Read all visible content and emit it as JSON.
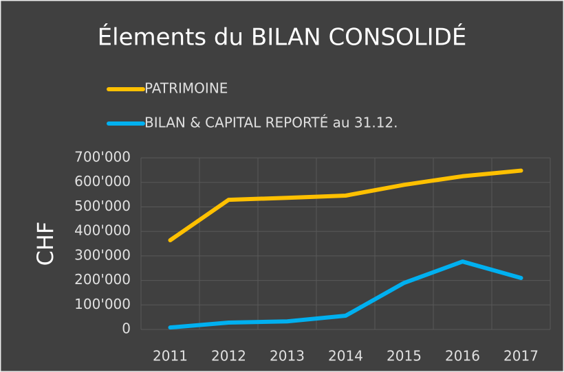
{
  "chart_data": {
    "type": "line",
    "title": "Élements du BILAN CONSOLIDÉ",
    "y_label": "CHF",
    "categories": [
      "2011",
      "2012",
      "2013",
      "2014",
      "2015",
      "2016",
      "2017"
    ],
    "series": [
      {
        "name": "PATRIMOINE",
        "color": "#ffc000",
        "values": [
          364000,
          529000,
          537000,
          546000,
          590000,
          625000,
          648000
        ]
      },
      {
        "name": "BILAN & CAPITAL REPORTÉ au 31.12.",
        "color": "#00b0f0",
        "values": [
          8000,
          28000,
          33000,
          56000,
          190000,
          277000,
          210000
        ]
      }
    ],
    "ylim": [
      0,
      700000
    ],
    "yticks": [
      0,
      {
        "value": 100000,
        "label": "100'000"
      },
      {
        "value": 200000,
        "label": "200'000"
      },
      {
        "value": 300000,
        "label": "300'000"
      },
      {
        "value": 400000,
        "label": "400'000"
      },
      {
        "value": 500000,
        "label": "500'000"
      },
      {
        "value": 600000,
        "label": "600'000"
      },
      {
        "value": 700000,
        "label": "700'000"
      }
    ],
    "grid": true,
    "legend": "top-left"
  }
}
